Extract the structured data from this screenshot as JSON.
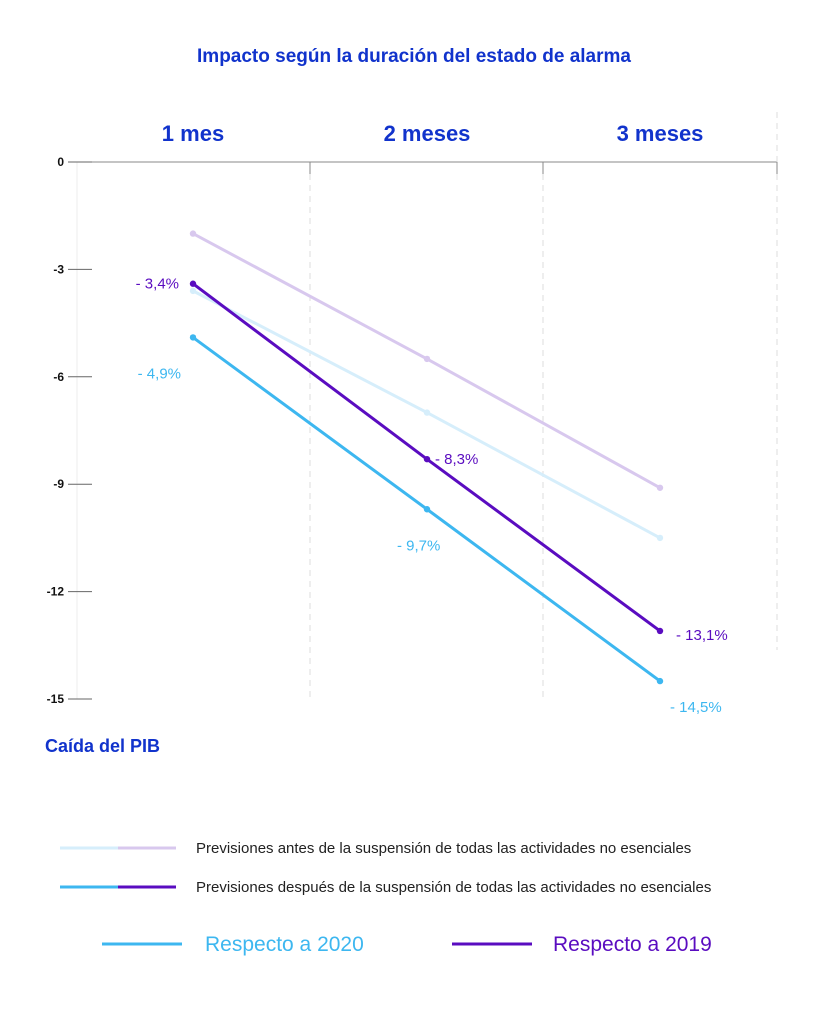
{
  "chart_data": {
    "type": "line",
    "title": "Impacto según la duración del estado de alarma",
    "categories": [
      "1 mes",
      "2 meses",
      "3 meses"
    ],
    "xlabel": "",
    "ylabel": "Caída del PIB",
    "ylim": [
      -15,
      0
    ],
    "yticks": [
      0,
      -3,
      -6,
      -9,
      -12,
      -15
    ],
    "series": [
      {
        "key": "before_2019",
        "values": [
          -2.0,
          -5.5,
          -9.1
        ],
        "color": "#d8c8ee",
        "labels": [
          "",
          "",
          ""
        ]
      },
      {
        "key": "before_2020",
        "values": [
          -3.6,
          -7.0,
          -10.5
        ],
        "color": "#d6eefb",
        "labels": [
          "",
          "",
          ""
        ]
      },
      {
        "key": "after_2020",
        "values": [
          -4.9,
          -9.7,
          -14.5
        ],
        "color": "#3db7f0",
        "labels": [
          "- 4,9%",
          "- 9,7%",
          "- 14,5%"
        ]
      },
      {
        "key": "after_2019",
        "values": [
          -3.4,
          -8.3,
          -13.1
        ],
        "color": "#5a0cc0",
        "labels": [
          "- 3,4%",
          "- 8,3%",
          "- 13,1%"
        ]
      }
    ],
    "legend": {
      "before_label": "Previsiones antes de la suspensión de todas las actividades no esenciales",
      "after_label": "Previsiones después de la suspensión de todas las actividades no esenciales",
      "ref_2020_label": "Respecto a 2020",
      "ref_2019_label": "Respecto a 2019"
    },
    "grid": "vertical dashed column separators"
  }
}
